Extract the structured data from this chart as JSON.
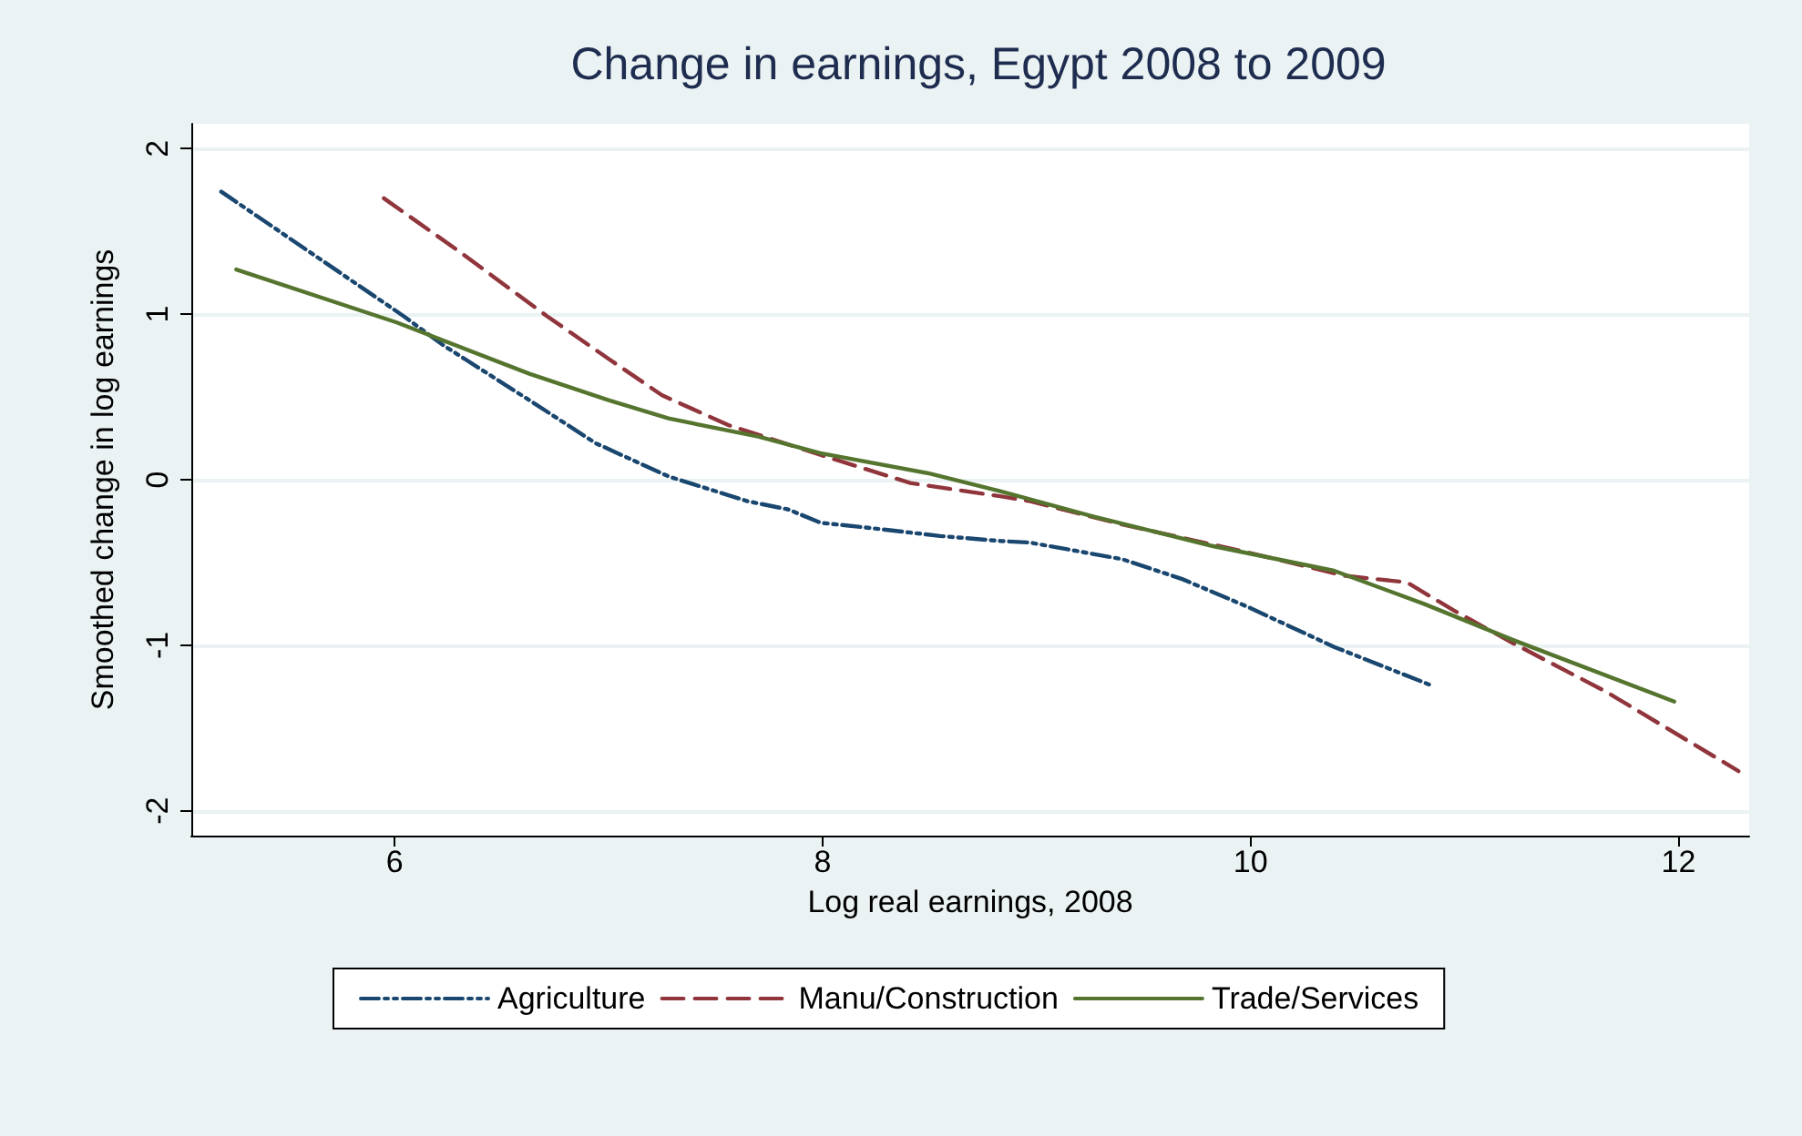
{
  "chart_data": {
    "type": "line",
    "title": "Change in earnings, Egypt 2008 to 2009",
    "xlabel": "Log real earnings, 2008",
    "ylabel": "Smoothed change in log earnings",
    "xlim": [
      5.05,
      12.33
    ],
    "xticks": [
      6,
      8,
      10,
      12
    ],
    "ylim": [
      -2.15,
      2.15
    ],
    "yticks": [
      -2,
      -1,
      0,
      1,
      2
    ],
    "grid": "y",
    "legend": "bottom",
    "marker": "none",
    "series": [
      {
        "name": "Agriculture",
        "color": "#1a476f",
        "line_style": "dotted",
        "x": [
          5.19,
          6.04,
          6.23,
          6.63,
          6.94,
          7.28,
          7.65,
          7.84,
          7.99,
          8.21,
          8.55,
          8.83,
          8.97,
          9.4,
          9.68,
          9.99,
          10.39,
          10.84
        ],
        "values": [
          1.74,
          0.99,
          0.81,
          0.48,
          0.22,
          0.02,
          -0.13,
          -0.18,
          -0.26,
          -0.29,
          -0.34,
          -0.37,
          -0.38,
          -0.48,
          -0.6,
          -0.77,
          -1.01,
          -1.24
        ]
      },
      {
        "name": "Manu/Construction",
        "color": "#90353b",
        "line_style": "dashed",
        "x": [
          5.95,
          6.29,
          6.71,
          7.0,
          7.25,
          7.56,
          7.99,
          8.41,
          8.83,
          8.97,
          9.4,
          9.99,
          10.44,
          10.73,
          10.95,
          11.23,
          11.66,
          12.28
        ],
        "values": [
          1.7,
          1.39,
          0.99,
          0.73,
          0.51,
          0.33,
          0.15,
          -0.02,
          -0.1,
          -0.13,
          -0.27,
          -0.44,
          -0.58,
          -0.62,
          -0.79,
          -0.99,
          -1.28,
          -1.76
        ]
      },
      {
        "name": "Trade/Services",
        "color": "#55752f",
        "line_style": "solid",
        "x": [
          5.26,
          6.01,
          6.63,
          7.0,
          7.28,
          7.7,
          7.99,
          8.49,
          8.83,
          9.26,
          9.82,
          10.39,
          10.81,
          11.23,
          11.98
        ],
        "values": [
          1.27,
          0.95,
          0.64,
          0.48,
          0.37,
          0.26,
          0.16,
          0.04,
          -0.07,
          -0.22,
          -0.4,
          -0.55,
          -0.75,
          -0.97,
          -1.34
        ]
      }
    ]
  }
}
